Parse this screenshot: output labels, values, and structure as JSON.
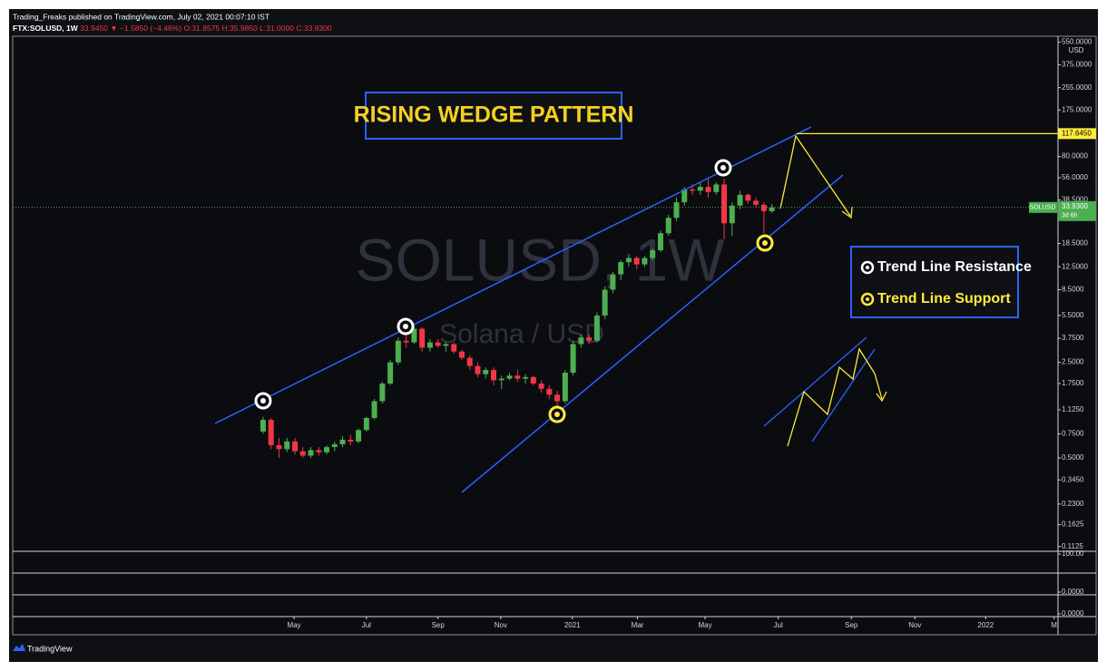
{
  "header": {
    "publisher": "Trading_Freaks published on TradingView.com, July 02, 2021 00:07:10 IST",
    "symbol": "FTX:SOLUSD, 1W",
    "last": "33.9450 ▼ −1.5850 (−4.46%)",
    "ohlc": [
      "O:31.8575",
      "H:35.9850",
      "L:31.0000",
      "C:33.9300"
    ]
  },
  "chart_data": {
    "type": "candlestick",
    "title": "RISING WEDGE PATTERN",
    "watermark": "SOLUSD, 1W",
    "subtitle": "Solana / USD",
    "y_unit": "USD",
    "log_scale": true,
    "grid": false,
    "x": [
      0,
      1,
      2,
      3,
      4,
      5,
      6,
      7,
      8,
      9,
      10,
      11,
      12,
      13,
      14,
      15,
      16,
      17,
      18,
      19,
      20,
      21,
      22,
      23,
      24,
      25,
      26,
      27,
      28,
      29,
      30,
      31,
      32,
      33,
      34,
      35,
      36,
      37,
      38,
      39,
      40,
      41,
      42,
      43,
      44,
      45,
      46,
      47,
      48,
      49,
      50,
      51,
      52,
      53,
      54,
      55,
      56,
      57,
      58,
      59,
      60,
      61,
      62,
      63,
      64
    ],
    "xlim": [
      -31.5,
      100
    ],
    "xticks": [
      {
        "value": 3.9,
        "label": "May"
      },
      {
        "value": 13.0,
        "label": "Jul"
      },
      {
        "value": 22.0,
        "label": "Sep"
      },
      {
        "value": 29.9,
        "label": "Nov"
      },
      {
        "value": 38.9,
        "label": "2021"
      },
      {
        "value": 47.1,
        "label": "Mar"
      },
      {
        "value": 55.6,
        "label": "May"
      },
      {
        "value": 64.8,
        "label": "Jul"
      },
      {
        "value": 74.0,
        "label": "Sep"
      },
      {
        "value": 82.0,
        "label": "Nov"
      },
      {
        "value": 90.9,
        "label": "2022"
      },
      {
        "value": 99.5,
        "label": "M"
      }
    ],
    "ylim": [
      0.107,
      606
    ],
    "yticks": [
      {
        "value": 0.1125,
        "label": "0.1125"
      },
      {
        "value": 0.1625,
        "label": "0.1625"
      },
      {
        "value": 0.23,
        "label": "0.2300"
      },
      {
        "value": 0.345,
        "label": "0.3450"
      },
      {
        "value": 0.5,
        "label": "0.5000"
      },
      {
        "value": 0.75,
        "label": "0.7500"
      },
      {
        "value": 1.125,
        "label": "1.1250"
      },
      {
        "value": 1.75,
        "label": "1.7500"
      },
      {
        "value": 2.5,
        "label": "2.5000"
      },
      {
        "value": 3.75,
        "label": "3.7500"
      },
      {
        "value": 5.5,
        "label": "5.5000"
      },
      {
        "value": 8.5,
        "label": "8.5000"
      },
      {
        "value": 12.5,
        "label": "12.5000"
      },
      {
        "value": 18.5,
        "label": "18.5000"
      },
      {
        "value": 38.5,
        "label": "38.5000"
      },
      {
        "value": 56,
        "label": "56.0000"
      },
      {
        "value": 80,
        "label": "80.0000"
      },
      {
        "value": 175,
        "label": "175.0000"
      },
      {
        "value": 255,
        "label": "255.0000"
      },
      {
        "value": 375,
        "label": "375.0000"
      },
      {
        "value": 550,
        "label": "550.0000"
      }
    ],
    "series": [
      {
        "name": "SOLUSD",
        "up_color": "#4caf50",
        "down_color": "#f23645",
        "open": [
          0.78,
          0.95,
          0.62,
          0.58,
          0.66,
          0.56,
          0.52,
          0.57,
          0.55,
          0.6,
          0.63,
          0.68,
          0.66,
          0.8,
          0.98,
          1.3,
          1.75,
          2.5,
          3.6,
          3.5,
          4.4,
          3.2,
          3.5,
          3.3,
          3.4,
          3.0,
          2.7,
          2.35,
          2.05,
          2.2,
          1.85,
          1.9,
          2.0,
          1.9,
          1.95,
          1.75,
          1.6,
          1.45,
          1.3,
          2.1,
          3.4,
          3.8,
          3.6,
          5.5,
          8.5,
          11.0,
          13.5,
          14.5,
          13.0,
          14.5,
          16.5,
          22.0,
          28.5,
          37.0,
          46.0,
          45.0,
          48.0,
          44.0,
          50.0,
          26.0,
          35.0,
          42.0,
          38.0,
          35.5,
          31.8575
        ],
        "high": [
          1.0,
          0.98,
          0.7,
          0.7,
          0.7,
          0.6,
          0.6,
          0.6,
          0.62,
          0.66,
          0.72,
          0.74,
          0.82,
          1.0,
          1.35,
          1.8,
          2.6,
          3.8,
          4.3,
          4.6,
          4.5,
          3.7,
          3.7,
          3.5,
          3.5,
          3.1,
          2.8,
          2.5,
          2.3,
          2.3,
          2.0,
          2.1,
          2.2,
          2.05,
          2.0,
          1.85,
          1.7,
          1.55,
          2.2,
          3.6,
          4.0,
          4.0,
          5.8,
          9.0,
          11.5,
          14.0,
          15.5,
          15.0,
          15.0,
          17.0,
          23.0,
          30.0,
          40.0,
          48.0,
          50.0,
          52.0,
          55.0,
          52.0,
          55.0,
          37.0,
          45.0,
          43.0,
          40.0,
          37.0,
          35.985
        ],
        "low": [
          0.75,
          0.58,
          0.5,
          0.55,
          0.53,
          0.5,
          0.5,
          0.52,
          0.53,
          0.56,
          0.6,
          0.62,
          0.64,
          0.78,
          0.95,
          1.25,
          1.7,
          2.4,
          3.2,
          3.4,
          3.0,
          3.0,
          3.2,
          3.0,
          2.9,
          2.6,
          2.2,
          1.95,
          1.9,
          1.7,
          1.6,
          1.85,
          1.8,
          1.75,
          1.7,
          1.5,
          1.35,
          1.2,
          1.25,
          2.0,
          3.2,
          3.4,
          3.5,
          5.2,
          8.0,
          10.0,
          12.5,
          12.0,
          12.5,
          14.0,
          16.0,
          21.0,
          27.0,
          35.0,
          42.0,
          42.0,
          40.0,
          42.0,
          20.0,
          21.0,
          33.0,
          36.0,
          34.0,
          22.0,
          31.0
        ],
        "close": [
          0.95,
          0.62,
          0.58,
          0.66,
          0.56,
          0.52,
          0.57,
          0.55,
          0.6,
          0.63,
          0.68,
          0.66,
          0.8,
          0.98,
          1.3,
          1.75,
          2.5,
          3.6,
          3.5,
          4.4,
          3.2,
          3.5,
          3.3,
          3.4,
          3.0,
          2.7,
          2.35,
          2.05,
          2.2,
          1.85,
          1.9,
          2.0,
          1.9,
          1.95,
          1.75,
          1.6,
          1.45,
          1.3,
          2.1,
          3.4,
          3.8,
          3.6,
          5.5,
          8.5,
          11.0,
          13.5,
          14.5,
          13.0,
          14.5,
          16.5,
          22.0,
          28.5,
          37.0,
          46.0,
          45.0,
          48.0,
          44.0,
          50.0,
          26.0,
          35.0,
          42.0,
          38.0,
          35.5,
          31.86,
          33.93
        ]
      }
    ],
    "last_price": {
      "value": 33.93,
      "label": "33.9300",
      "countdown": "3d 6h"
    },
    "target": {
      "value": 117.645,
      "label": "117.6450",
      "color": "#ffeb3b"
    },
    "legend": [
      "Trend Line Resistance",
      "Trend Line Support"
    ],
    "lower_panes": [
      {
        "value": 100,
        "label": "100.00"
      },
      {
        "value": 0,
        "label": "0.0000"
      },
      {
        "value": 0,
        "label": "0.0000"
      }
    ]
  },
  "footer": "TradingView"
}
